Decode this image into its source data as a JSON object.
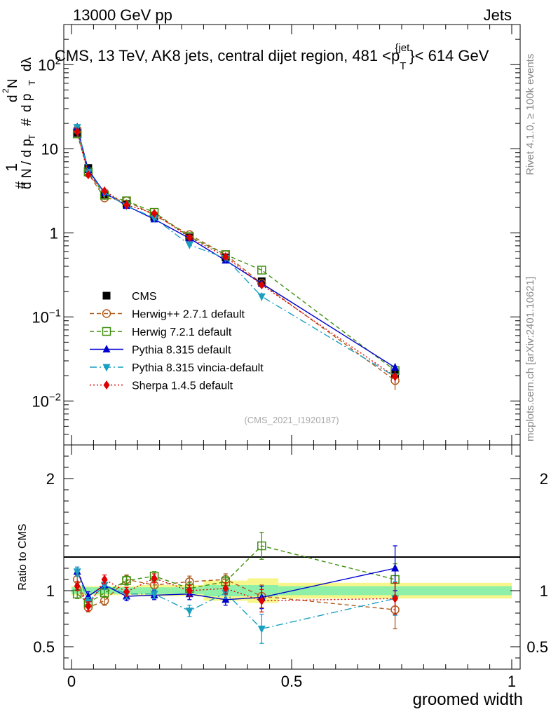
{
  "header": {
    "left": "13000 GeV pp",
    "right": "Jets"
  },
  "side_notes": {
    "rivet": "Rivet 4.1.0, ≥ 100k events",
    "mcplots": "mcplots.cern.ch [arXiv:2401.10621]"
  },
  "chart_data": [
    {
      "type": "line",
      "panel": "main",
      "title": "CMS, 13 TeV, AK8 jets, central dijet region, 481 <p_T^{jet}< 614 GeV",
      "title_parts": {
        "main": "CMS, 13 TeV, AK8 jets, central dijet region, 481 <p",
        "sup": "{jet",
        "sub": "T",
        "tail": "}< 614 GeV"
      },
      "ylabel": "1/(dN/dp_T) d^2N/(dp_T dλ)",
      "ylabel_parts": [
        "#",
        "1",
        "d N / d p",
        "T",
        "#",
        "d",
        "2",
        "N",
        "d p",
        "T",
        "dλ"
      ],
      "xlim": [
        0,
        1
      ],
      "ylim": [
        0.003,
        300
      ],
      "yscale": "log",
      "yticks": [
        {
          "v": 0.01,
          "b": "10",
          "e": "−2"
        },
        {
          "v": 0.1,
          "b": "10",
          "e": "−1"
        },
        {
          "v": 1,
          "b": "1",
          "e": ""
        },
        {
          "v": 10,
          "b": "10",
          "e": ""
        },
        {
          "v": 100,
          "b": "10",
          "e": "2"
        }
      ],
      "watermark": "(CMS_2021_I1920187)",
      "bins": [
        {
          "lo": 0.0,
          "hi": 0.025
        },
        {
          "lo": 0.025,
          "hi": 0.05
        },
        {
          "lo": 0.05,
          "hi": 0.1
        },
        {
          "lo": 0.1,
          "hi": 0.15
        },
        {
          "lo": 0.15,
          "hi": 0.225
        },
        {
          "lo": 0.225,
          "hi": 0.3
        },
        {
          "lo": 0.3,
          "hi": 0.4
        },
        {
          "lo": 0.4,
          "hi": 0.47
        },
        {
          "lo": 0.47,
          "hi": 1.0
        }
      ],
      "x": [
        0.013,
        0.038,
        0.075,
        0.125,
        0.188,
        0.268,
        0.35,
        0.432,
        0.735
      ],
      "series": [
        {
          "name": "CMS",
          "color": "#000000",
          "marker": "square",
          "dash": "",
          "values": [
            15.4,
            5.9,
            2.85,
            2.2,
            1.55,
            0.88,
            0.51,
            0.265,
            0.021
          ],
          "errors": [
            0.8,
            0.2,
            0.1,
            0.08,
            0.06,
            0.04,
            0.03,
            0.015,
            0.002
          ]
        },
        {
          "name": "Herwig++ 2.7.1 default",
          "color": "#b05a1a",
          "marker": "open-circle",
          "dash": "6,4",
          "values": [
            16.8,
            5.1,
            2.6,
            2.4,
            1.62,
            0.95,
            0.55,
            0.25,
            0.0175
          ],
          "errors": [
            0.8,
            0.3,
            0.15,
            0.1,
            0.08,
            0.05,
            0.03,
            0.02,
            0.004
          ]
        },
        {
          "name": "Herwig 7.2.1 default",
          "color": "#3f8f0f",
          "marker": "open-square",
          "dash": "6,4",
          "values": [
            15.0,
            5.3,
            2.8,
            2.4,
            1.75,
            0.9,
            0.55,
            0.36,
            0.023
          ],
          "errors": [
            0.8,
            0.3,
            0.12,
            0.1,
            0.08,
            0.05,
            0.03,
            0.03,
            0.003
          ]
        },
        {
          "name": "Pythia 8.315 default",
          "color": "#0000d0",
          "marker": "triangle-up",
          "dash": "",
          "values": [
            18.0,
            5.6,
            3.0,
            2.1,
            1.45,
            0.86,
            0.47,
            0.25,
            0.025
          ],
          "errors": [
            0.6,
            0.2,
            0.1,
            0.08,
            0.06,
            0.04,
            0.03,
            0.02,
            0.003
          ]
        },
        {
          "name": "Pythia 8.315 vincia-default",
          "color": "#1a9fc0",
          "marker": "triangle-down",
          "dash": "10,4,2,4",
          "values": [
            18.0,
            5.3,
            3.0,
            2.1,
            1.5,
            0.72,
            0.5,
            0.175,
            0.0195
          ],
          "errors": [
            0.6,
            0.2,
            0.1,
            0.08,
            0.06,
            0.04,
            0.03,
            0.02,
            0.003
          ]
        },
        {
          "name": "Sherpa 1.4.5 default",
          "color": "#e00000",
          "marker": "diamond",
          "dash": "2,3",
          "values": [
            16.0,
            4.9,
            3.15,
            2.15,
            1.7,
            0.88,
            0.52,
            0.24,
            0.0195
          ],
          "errors": [
            0.6,
            0.2,
            0.1,
            0.08,
            0.06,
            0.04,
            0.03,
            0.02,
            0.003
          ]
        }
      ]
    },
    {
      "type": "line",
      "panel": "ratio",
      "ylabel": "Ratio to CMS",
      "xlabel": "groomed width",
      "xlim": [
        0,
        1
      ],
      "ylim": [
        0.3,
        2.3
      ],
      "yticks": [
        {
          "v": 0.5,
          "label": "0.5"
        },
        {
          "v": 1,
          "label": "1"
        },
        {
          "v": 2,
          "label": "2"
        }
      ],
      "xticks": [
        {
          "v": 0,
          "label": "0"
        },
        {
          "v": 0.5,
          "label": "0.5"
        },
        {
          "v": 1,
          "label": "1"
        }
      ],
      "band_inner": [
        0.03,
        0.03,
        0.03,
        0.03,
        0.03,
        0.03,
        0.05,
        0.05,
        0.04
      ],
      "band_outer": [
        0.04,
        0.04,
        0.04,
        0.04,
        0.05,
        0.05,
        0.09,
        0.11,
        0.07
      ],
      "series": [
        {
          "name": "Herwig++ 2.7.1 default",
          "values": [
            1.1,
            0.85,
            0.91,
            1.1,
            1.05,
            1.08,
            1.1,
            0.95,
            0.83
          ],
          "errors": [
            0.04,
            0.04,
            0.04,
            0.04,
            0.04,
            0.05,
            0.05,
            0.1,
            0.17
          ]
        },
        {
          "name": "Herwig 7.2.1 default",
          "values": [
            0.97,
            0.89,
            0.98,
            1.09,
            1.13,
            1.02,
            1.08,
            1.4,
            1.1
          ],
          "errors": [
            0.04,
            0.04,
            0.04,
            0.04,
            0.04,
            0.05,
            0.05,
            0.12,
            0.14
          ]
        },
        {
          "name": "Pythia 8.315 default",
          "values": [
            1.17,
            0.95,
            1.05,
            0.95,
            0.96,
            0.97,
            0.92,
            0.94,
            1.2
          ],
          "errors": [
            0.04,
            0.04,
            0.04,
            0.04,
            0.04,
            0.05,
            0.05,
            0.1,
            0.2
          ]
        },
        {
          "name": "Pythia 8.315 vincia-default",
          "values": [
            1.17,
            0.9,
            1.05,
            0.97,
            0.97,
            0.82,
            0.98,
            0.66,
            0.93
          ],
          "errors": [
            0.04,
            0.04,
            0.04,
            0.04,
            0.04,
            0.05,
            0.05,
            0.13,
            0.15
          ]
        },
        {
          "name": "Sherpa 1.4.5 default",
          "values": [
            1.04,
            0.86,
            1.1,
            0.99,
            1.11,
            1.0,
            1.02,
            0.91,
            0.93
          ],
          "errors": [
            0.04,
            0.04,
            0.04,
            0.04,
            0.04,
            0.05,
            0.05,
            0.1,
            0.14
          ]
        }
      ]
    }
  ]
}
